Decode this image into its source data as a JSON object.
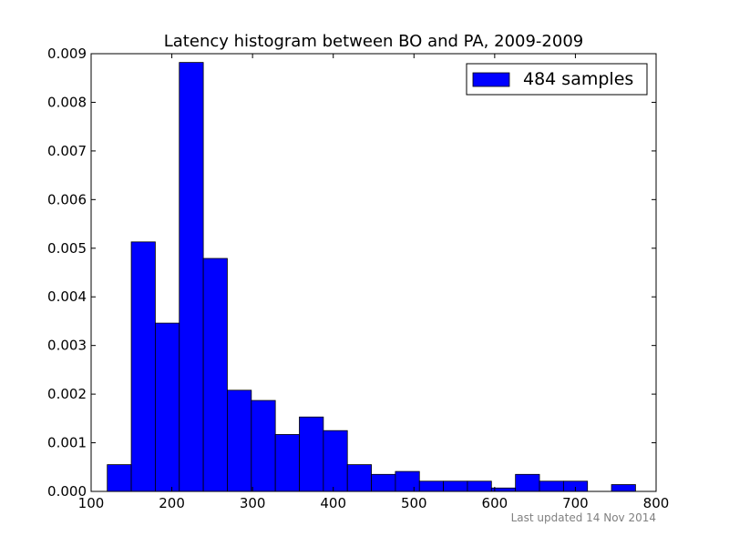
{
  "chart_data": {
    "type": "bar",
    "title": "Latency histogram between BO and PA, 2009-2009",
    "xlabel": "",
    "ylabel": "",
    "xlim": [
      100,
      800
    ],
    "ylim": [
      0,
      0.009
    ],
    "xticks": [
      "100",
      "200",
      "300",
      "400",
      "500",
      "600",
      "700",
      "800"
    ],
    "yticks": [
      "0.000",
      "0.001",
      "0.002",
      "0.003",
      "0.004",
      "0.005",
      "0.006",
      "0.007",
      "0.008",
      "0.009"
    ],
    "grid": false,
    "legend": {
      "position": "top-right",
      "label": "484 samples"
    },
    "bar_color": "#0000ff",
    "bin_edges": [
      120,
      149.75,
      179.5,
      209.25,
      239,
      268.75,
      298.5,
      328.25,
      358,
      387.75,
      417.5,
      447.25,
      477,
      506.75,
      536.5,
      566.25,
      596,
      625.75,
      655.5,
      685.25,
      715,
      744.75,
      774.5
    ],
    "series": [
      {
        "name": "484 samples",
        "values": [
          0.00055,
          0.00513,
          0.00346,
          0.00882,
          0.00479,
          0.00208,
          0.00187,
          0.00117,
          0.00153,
          0.00125,
          0.00055,
          0.00035,
          0.00041,
          0.00021,
          0.00021,
          0.00021,
          7e-05,
          0.00035,
          0.00021,
          0.00021,
          0,
          0.00014
        ]
      }
    ]
  },
  "footer": {
    "text": "Last updated 14 Nov 2014"
  }
}
